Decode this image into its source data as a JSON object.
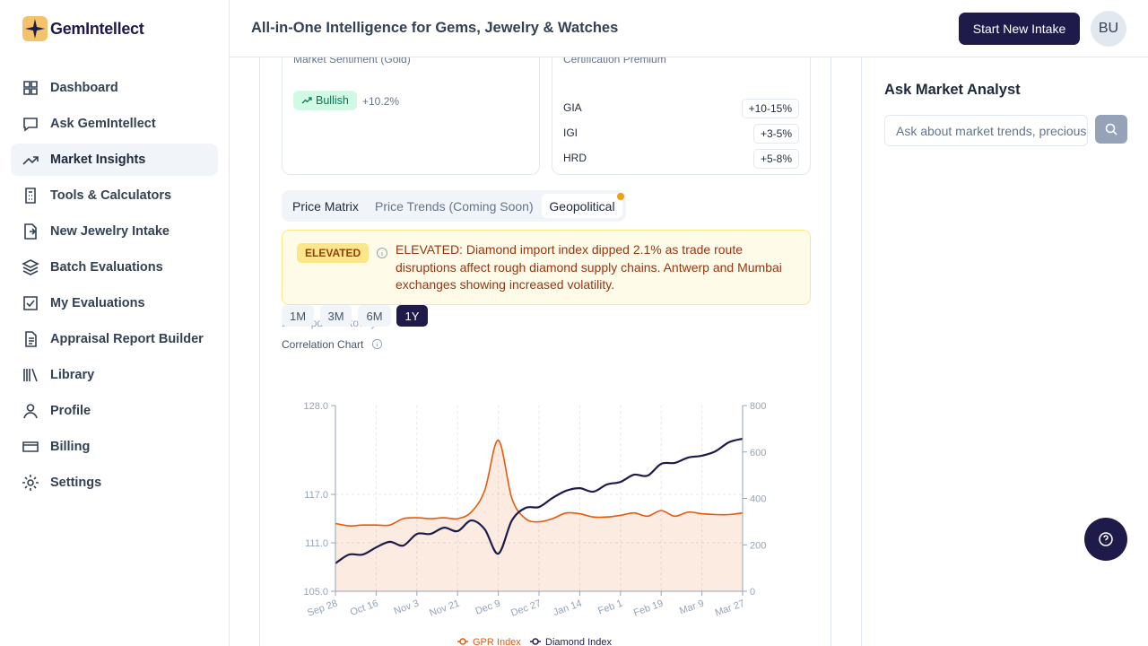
{
  "brand": "GemIntellect",
  "header": {
    "title": "All-in-One Intelligence for Gems, Jewelry & Watches",
    "button": "Start New Intake",
    "avatar": "BU"
  },
  "nav": [
    "Dashboard",
    "Ask GemIntellect",
    "Market Insights",
    "Tools & Calculators",
    "New Jewelry Intake",
    "Batch Evaluations",
    "My Evaluations",
    "Appraisal Report Builder",
    "Library",
    "Profile",
    "Billing",
    "Settings"
  ],
  "sentiment": {
    "title": "Market Sentiment (Gold)",
    "badge": "Bullish",
    "change": "+10.2%"
  },
  "certification": {
    "title": "Certification Premium",
    "rows": [
      [
        "GIA",
        "+10-15%"
      ],
      [
        "IGI",
        "+3-5%"
      ],
      [
        "HRD",
        "+5-8%"
      ]
    ]
  },
  "tabs": [
    "Price Matrix",
    "Price Trends (Coming Soon)",
    "Geopolitical"
  ],
  "alert": {
    "level": "ELEVATED",
    "text": "ELEVATED: Diamond import index dipped 2.1% as trade route disruptions affect rough diamond supply chains. Antwerp and Mumbai exchanges showing increased volatility."
  },
  "last_updated": "Last updated: today",
  "ranges": [
    "1M",
    "3M",
    "6M",
    "1Y"
  ],
  "chart_data": {
    "type": "line",
    "title": "Correlation Chart",
    "categories": [
      "Sep 28",
      null,
      null,
      "Oct 16",
      null,
      null,
      "Nov 3",
      null,
      null,
      "Nov 21",
      null,
      null,
      "Dec 9",
      null,
      null,
      "Dec 27",
      null,
      null,
      "Jan 14",
      null,
      null,
      "Feb 1",
      null,
      null,
      "Feb 19",
      null,
      null,
      "Mar 9",
      null,
      null,
      "Mar 27"
    ],
    "series": [
      {
        "name": "GPR Index",
        "color": "#ea580c",
        "area": true,
        "values": [
          113.4,
          113.1,
          113.2,
          113.2,
          113.2,
          114.0,
          114.1,
          114.0,
          114.1,
          114.0,
          114.8,
          117.5,
          123.7,
          116.5,
          114.0,
          113.6,
          114.0,
          114.7,
          114.6,
          114.2,
          114.2,
          114.4,
          114.7,
          114.3,
          115.0,
          114.3,
          114.8,
          114.6,
          114.5,
          114.5,
          114.7
        ]
      },
      {
        "name": "Diamond Index",
        "color": "#1e1b4b",
        "axis": "y2",
        "values": [
          120,
          158,
          158,
          189,
          213,
          197,
          247,
          247,
          274,
          259,
          305,
          267,
          162,
          305,
          359,
          363,
          402,
          433,
          444,
          429,
          460,
          471,
          502,
          498,
          549,
          553,
          576,
          584,
          603,
          642,
          657
        ]
      }
    ],
    "ylim": [
      105,
      128
    ],
    "yticks": [
      {
        "value": 105,
        "label": "105.0"
      },
      {
        "value": 111,
        "label": "111.0"
      },
      {
        "value": 117,
        "label": "117.0"
      },
      {
        "value": 128,
        "label": "128.0"
      }
    ],
    "y2lim": [
      0,
      800
    ],
    "y2ticks": [
      0,
      200,
      400,
      600,
      800
    ],
    "grid": true
  },
  "assistant": {
    "title": "Ask Market Analyst",
    "placeholder": "Ask about market trends, precious metals..."
  }
}
